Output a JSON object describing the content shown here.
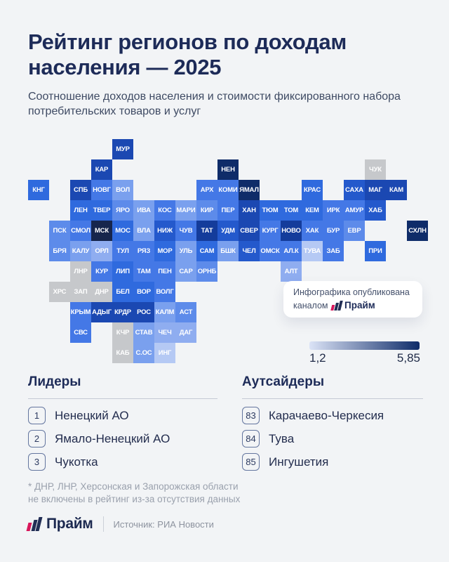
{
  "header": {
    "title": "Рейтинг регионов по доходам населения — 2025",
    "subtitle": "Соотношение доходов населения и стоимости фиксированного набора потребительских товаров и услуг"
  },
  "chart_data": {
    "type": "heatmap",
    "title": "Рейтинг регионов по доходам населения — 2025",
    "metric": "Соотношение доходов населения и стоимости фиксированного набора потребительских товаров и услуг",
    "scale": {
      "min": 1.2,
      "max": 5.85,
      "min_label": "1,2",
      "max_label": "5,85"
    },
    "legend_gradient": {
      "from": "#dbe3f6",
      "to": "#0f2c69"
    },
    "palette": {
      "gray": "#c6c8cb",
      "l2": "#b5c9f4",
      "l3": "#8fadf0",
      "l4": "#7aa0ee",
      "l5": "#5d8bea",
      "l6": "#4478e6",
      "l7": "#2f6ade",
      "l8": "#2459cc",
      "l9": "#1b48b2",
      "l10": "#143c9b",
      "l11": "#0f2c69",
      "l12": "#16254c"
    },
    "regions": [
      {
        "code": "МУР",
        "row": 1,
        "col": 4,
        "shade": "l9"
      },
      {
        "code": "КАР",
        "row": 2,
        "col": 3,
        "shade": "l9"
      },
      {
        "code": "НЕН",
        "row": 2,
        "col": 9,
        "shade": "l11"
      },
      {
        "code": "ЧУК",
        "row": 2,
        "col": 16,
        "shade": "gray"
      },
      {
        "code": "КНГ",
        "row": 3,
        "col": 0,
        "shade": "l7"
      },
      {
        "code": "СПБ",
        "row": 3,
        "col": 2,
        "shade": "l9"
      },
      {
        "code": "НОВГ",
        "row": 3,
        "col": 3,
        "shade": "l6"
      },
      {
        "code": "ВОЛ",
        "row": 3,
        "col": 4,
        "shade": "l4"
      },
      {
        "code": "АРХ",
        "row": 3,
        "col": 8,
        "shade": "l6"
      },
      {
        "code": "КОМИ",
        "row": 3,
        "col": 9,
        "shade": "l6"
      },
      {
        "code": "ЯМАЛ",
        "row": 3,
        "col": 10,
        "shade": "l11"
      },
      {
        "code": "КРАС",
        "row": 3,
        "col": 13,
        "shade": "l7"
      },
      {
        "code": "САХА",
        "row": 3,
        "col": 15,
        "shade": "l8"
      },
      {
        "code": "МАГ",
        "row": 3,
        "col": 16,
        "shade": "l9"
      },
      {
        "code": "КАМ",
        "row": 3,
        "col": 17,
        "shade": "l9"
      },
      {
        "code": "ЛЕН",
        "row": 4,
        "col": 2,
        "shade": "l7"
      },
      {
        "code": "ТВЕР",
        "row": 4,
        "col": 3,
        "shade": "l7"
      },
      {
        "code": "ЯРО",
        "row": 4,
        "col": 4,
        "shade": "l5"
      },
      {
        "code": "ИВА",
        "row": 4,
        "col": 5,
        "shade": "l4"
      },
      {
        "code": "КОС",
        "row": 4,
        "col": 6,
        "shade": "l6"
      },
      {
        "code": "МАРИ",
        "row": 4,
        "col": 7,
        "shade": "l4"
      },
      {
        "code": "КИР",
        "row": 4,
        "col": 8,
        "shade": "l5"
      },
      {
        "code": "ПЕР",
        "row": 4,
        "col": 9,
        "shade": "l6"
      },
      {
        "code": "ХАН",
        "row": 4,
        "col": 10,
        "shade": "l9"
      },
      {
        "code": "ТЮМ",
        "row": 4,
        "col": 11,
        "shade": "l7"
      },
      {
        "code": "ТОМ",
        "row": 4,
        "col": 12,
        "shade": "l7"
      },
      {
        "code": "КЕМ",
        "row": 4,
        "col": 13,
        "shade": "l7"
      },
      {
        "code": "ИРК",
        "row": 4,
        "col": 14,
        "shade": "l6"
      },
      {
        "code": "АМУР",
        "row": 4,
        "col": 15,
        "shade": "l6"
      },
      {
        "code": "ХАБ",
        "row": 4,
        "col": 16,
        "shade": "l8"
      },
      {
        "code": "ПСК",
        "row": 5,
        "col": 1,
        "shade": "l5"
      },
      {
        "code": "СМОЛ",
        "row": 5,
        "col": 2,
        "shade": "l6"
      },
      {
        "code": "МСК",
        "row": 5,
        "col": 3,
        "shade": "l12"
      },
      {
        "code": "МОС",
        "row": 5,
        "col": 4,
        "shade": "l7"
      },
      {
        "code": "ВЛА",
        "row": 5,
        "col": 5,
        "shade": "l4"
      },
      {
        "code": "НИЖ",
        "row": 5,
        "col": 6,
        "shade": "l8"
      },
      {
        "code": "ЧУВ",
        "row": 5,
        "col": 7,
        "shade": "l6"
      },
      {
        "code": "ТАТ",
        "row": 5,
        "col": 8,
        "shade": "l10"
      },
      {
        "code": "УДМ",
        "row": 5,
        "col": 9,
        "shade": "l8"
      },
      {
        "code": "СВЕР",
        "row": 5,
        "col": 10,
        "shade": "l9"
      },
      {
        "code": "КУРГ",
        "row": 5,
        "col": 11,
        "shade": "l6"
      },
      {
        "code": "НОВО",
        "row": 5,
        "col": 12,
        "shade": "l10"
      },
      {
        "code": "ХАК",
        "row": 5,
        "col": 13,
        "shade": "l6"
      },
      {
        "code": "БУР",
        "row": 5,
        "col": 14,
        "shade": "l6"
      },
      {
        "code": "ЕВР",
        "row": 5,
        "col": 15,
        "shade": "l5"
      },
      {
        "code": "СХЛН",
        "row": 5,
        "col": 18,
        "shade": "l11"
      },
      {
        "code": "БРЯ",
        "row": 6,
        "col": 1,
        "shade": "l5"
      },
      {
        "code": "КАЛУ",
        "row": 6,
        "col": 2,
        "shade": "l4"
      },
      {
        "code": "ОРЛ",
        "row": 6,
        "col": 3,
        "shade": "l3"
      },
      {
        "code": "ТУЛ",
        "row": 6,
        "col": 4,
        "shade": "l6"
      },
      {
        "code": "РЯЗ",
        "row": 6,
        "col": 5,
        "shade": "l6"
      },
      {
        "code": "МОР",
        "row": 6,
        "col": 6,
        "shade": "l7"
      },
      {
        "code": "УЛЬ",
        "row": 6,
        "col": 7,
        "shade": "l4"
      },
      {
        "code": "САМ",
        "row": 6,
        "col": 8,
        "shade": "l7"
      },
      {
        "code": "БШК",
        "row": 6,
        "col": 9,
        "shade": "l4"
      },
      {
        "code": "ЧЕЛ",
        "row": 6,
        "col": 10,
        "shade": "l8"
      },
      {
        "code": "ОМСК",
        "row": 6,
        "col": 11,
        "shade": "l6"
      },
      {
        "code": "АЛ.К",
        "row": 6,
        "col": 12,
        "shade": "l6"
      },
      {
        "code": "ТУВА",
        "row": 6,
        "col": 13,
        "shade": "l2"
      },
      {
        "code": "ЗАБ",
        "row": 6,
        "col": 14,
        "shade": "l6"
      },
      {
        "code": "ПРИ",
        "row": 6,
        "col": 16,
        "shade": "l7"
      },
      {
        "code": "ЛНР",
        "row": 7,
        "col": 2,
        "shade": "gray"
      },
      {
        "code": "КУР",
        "row": 7,
        "col": 3,
        "shade": "l6"
      },
      {
        "code": "ЛИП",
        "row": 7,
        "col": 4,
        "shade": "l7"
      },
      {
        "code": "ТАМ",
        "row": 7,
        "col": 5,
        "shade": "l6"
      },
      {
        "code": "ПЕН",
        "row": 7,
        "col": 6,
        "shade": "l6"
      },
      {
        "code": "САР",
        "row": 7,
        "col": 7,
        "shade": "l4"
      },
      {
        "code": "ОРНБ",
        "row": 7,
        "col": 8,
        "shade": "l5"
      },
      {
        "code": "АЛТ",
        "row": 7,
        "col": 12,
        "shade": "l3"
      },
      {
        "code": "ХРС",
        "row": 8,
        "col": 1,
        "shade": "gray"
      },
      {
        "code": "ЗАП",
        "row": 8,
        "col": 2,
        "shade": "gray"
      },
      {
        "code": "ДНР",
        "row": 8,
        "col": 3,
        "shade": "gray"
      },
      {
        "code": "БЕЛ",
        "row": 8,
        "col": 4,
        "shade": "l7"
      },
      {
        "code": "ВОР",
        "row": 8,
        "col": 5,
        "shade": "l7"
      },
      {
        "code": "ВОЛГ",
        "row": 8,
        "col": 6,
        "shade": "l6"
      },
      {
        "code": "КРЫМ",
        "row": 9,
        "col": 2,
        "shade": "l6"
      },
      {
        "code": "АДЫГ",
        "row": 9,
        "col": 3,
        "shade": "l9"
      },
      {
        "code": "КРДР",
        "row": 9,
        "col": 4,
        "shade": "l9"
      },
      {
        "code": "РОС",
        "row": 9,
        "col": 5,
        "shade": "l9"
      },
      {
        "code": "КАЛМ",
        "row": 9,
        "col": 6,
        "shade": "l4"
      },
      {
        "code": "АСТ",
        "row": 9,
        "col": 7,
        "shade": "l5"
      },
      {
        "code": "СВС",
        "row": 10,
        "col": 2,
        "shade": "l6"
      },
      {
        "code": "КЧР",
        "row": 10,
        "col": 4,
        "shade": "gray"
      },
      {
        "code": "СТАВ",
        "row": 10,
        "col": 5,
        "shade": "l4"
      },
      {
        "code": "ЧЕЧ",
        "row": 10,
        "col": 6,
        "shade": "l3"
      },
      {
        "code": "ДАГ",
        "row": 10,
        "col": 7,
        "shade": "l3"
      },
      {
        "code": "КАБ",
        "row": 11,
        "col": 4,
        "shade": "gray"
      },
      {
        "code": "С.ОС",
        "row": 11,
        "col": 5,
        "shade": "l4"
      },
      {
        "code": "ИНГ",
        "row": 11,
        "col": 6,
        "shade": "l2"
      }
    ]
  },
  "legend": {
    "min": "1,2",
    "max": "5,85"
  },
  "credit": {
    "line1": "Инфографика опубликована",
    "prefix": "каналом",
    "brand": "Прайм"
  },
  "leaders": {
    "title": "Лидеры",
    "items": [
      {
        "rank": "1",
        "name": "Ненецкий АО"
      },
      {
        "rank": "2",
        "name": "Ямало-Ненецкий АО"
      },
      {
        "rank": "3",
        "name": "Чукотка"
      }
    ]
  },
  "outsiders": {
    "title": "Аутсайдеры",
    "items": [
      {
        "rank": "83",
        "name": "Карачаево-Черкесия"
      },
      {
        "rank": "84",
        "name": "Тува"
      },
      {
        "rank": "85",
        "name": "Ингушетия"
      }
    ]
  },
  "footnote": {
    "line1": "* ДНР, ЛНР, Херсонская и Запорожская области",
    "line2": "не включены в рейтинг из-за отсутствия данных"
  },
  "footer": {
    "brand": "Прайм",
    "source": "Источник: РИА Новости"
  }
}
